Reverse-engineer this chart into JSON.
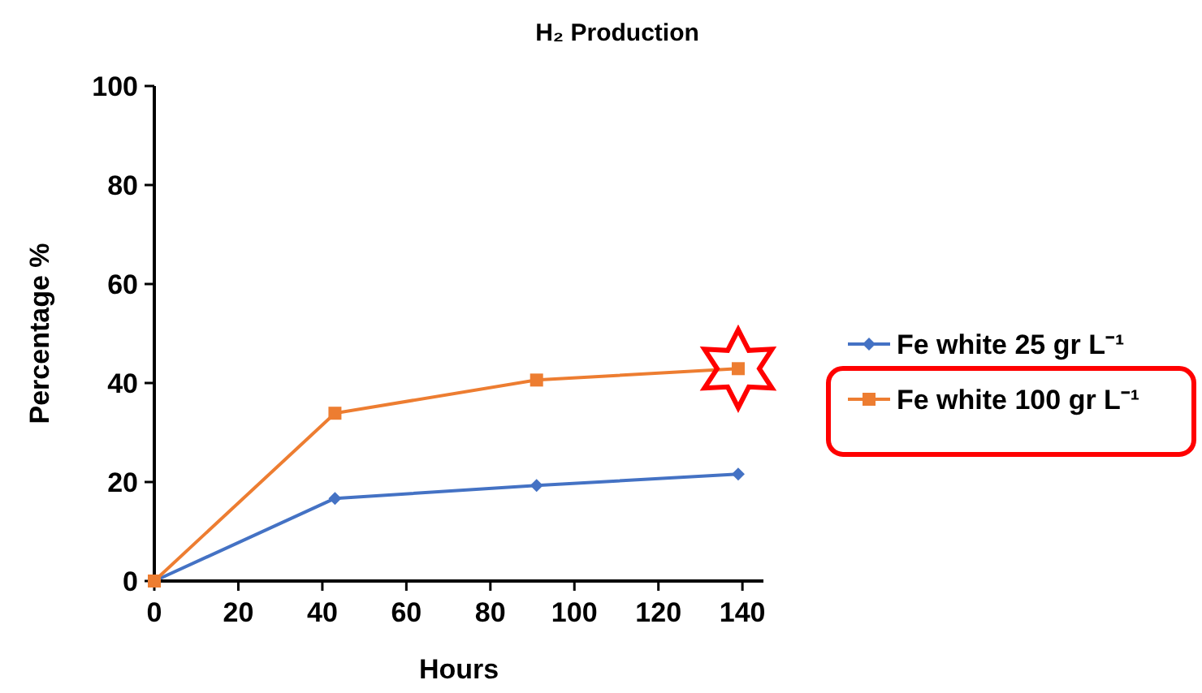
{
  "chart_data": {
    "type": "line",
    "title": "H₂ Production",
    "xlabel": "Hours",
    "ylabel": "Percentage %",
    "series": [
      {
        "name": "Fe white 25 gr L⁻¹",
        "color": "#4472c4",
        "marker": "diamond",
        "x": [
          0,
          43,
          91,
          139
        ],
        "values": [
          0,
          16.7,
          19.3,
          21.6
        ]
      },
      {
        "name": "Fe white 100 gr L⁻¹",
        "color": "#ed7d31",
        "marker": "square",
        "x": [
          0,
          43,
          91,
          139
        ],
        "values": [
          0,
          33.9,
          40.6,
          42.9
        ]
      }
    ],
    "xlim": [
      0,
      145
    ],
    "xticks": [
      0,
      20,
      40,
      60,
      80,
      100,
      120,
      140
    ],
    "ylim": [
      0,
      100
    ],
    "yticks": [
      0,
      20,
      40,
      60,
      80,
      100
    ],
    "grid": false,
    "legend": "right",
    "line_style": "solid"
  }
}
